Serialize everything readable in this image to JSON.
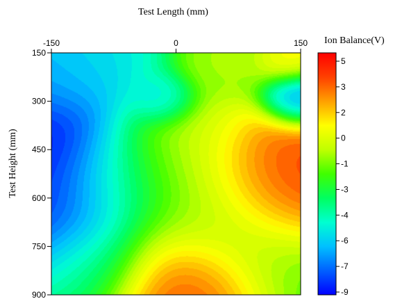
{
  "chart_data": {
    "type": "heatmap",
    "title": "",
    "xlabel": "Test Length (mm)",
    "ylabel": "Test Height (mm)",
    "colorbar_label": "Ion Balance(V)",
    "x_ticks": [
      "-150",
      "0",
      "150"
    ],
    "x_tick_values": [
      -150,
      0,
      150
    ],
    "y_ticks": [
      "150",
      "300",
      "450",
      "600",
      "750",
      "900"
    ],
    "y_tick_values": [
      150,
      300,
      450,
      600,
      750,
      900
    ],
    "xlim": [
      -150,
      150
    ],
    "ylim": [
      150,
      900
    ],
    "y_axis_inverted": true,
    "x_axis_position": "top",
    "colorbar_ticks": [
      "5",
      "3",
      "2",
      "0",
      "-1",
      "-3",
      "-4",
      "-6",
      "-7",
      "-9"
    ],
    "colorbar_tick_values": [
      5,
      3,
      2,
      0,
      -1,
      -3,
      -4,
      -6,
      -7,
      -9
    ],
    "colorbar_range": [
      -9.5,
      5.5
    ],
    "colormap": [
      "#0000ff",
      "#0060ff",
      "#00c0ff",
      "#00ffd0",
      "#00ff60",
      "#40ff00",
      "#c0ff00",
      "#ffff00",
      "#ffa000",
      "#ff4000",
      "#ff0000"
    ],
    "field_sources": [
      {
        "x": -150,
        "y": 450,
        "value": -10.5,
        "radius": 60,
        "note_shape": "left-edge"
      },
      {
        "x": -150,
        "y": 650,
        "value": -9.5,
        "radius": 55
      },
      {
        "x": -150,
        "y": 200,
        "value": -7.5,
        "radius": 50
      },
      {
        "x": -110,
        "y": 175,
        "value": -5.5,
        "radius": 45
      },
      {
        "x": -20,
        "y": 300,
        "value": -6.5,
        "radius": 22
      },
      {
        "x": 150,
        "y": 295,
        "value": -8.5,
        "radius": 25
      },
      {
        "x": 150,
        "y": 545,
        "value": 5.2,
        "radius": 55
      },
      {
        "x": 120,
        "y": 560,
        "value": 3.8,
        "radius": 60
      },
      {
        "x": 20,
        "y": 900,
        "value": 5.3,
        "radius": 45
      },
      {
        "x": 20,
        "y": 850,
        "value": 3.0,
        "radius": 60
      },
      {
        "x": 0,
        "y": 460,
        "value": 0.0,
        "radius": 55
      },
      {
        "x": 140,
        "y": 170,
        "value": 1.5,
        "radius": 25
      },
      {
        "x": 60,
        "y": 160,
        "value": -0.5,
        "radius": 30
      },
      {
        "x": 40,
        "y": 650,
        "value": -2.0,
        "radius": 55
      },
      {
        "x": 120,
        "y": 800,
        "value": -2.0,
        "radius": 55
      },
      {
        "x": -70,
        "y": 560,
        "value": -4.0,
        "radius": 50
      },
      {
        "x": -100,
        "y": 800,
        "value": -4.0,
        "radius": 45
      }
    ]
  }
}
